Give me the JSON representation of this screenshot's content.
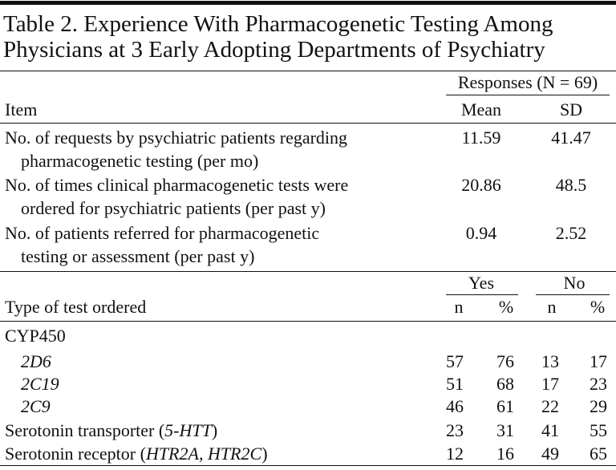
{
  "header": {
    "title": [
      "Table 2. Experience With Pharmacogenetic Testing Among",
      "Physicians at 3 Early Adopting Departments of Psychiatry"
    ]
  },
  "table1": {
    "group_header": "Responses (N = 69)",
    "headers": [
      "Item",
      "Mean",
      "SD"
    ],
    "rows": [
      {
        "item": [
          "No. of requests by psychiatric patients regarding",
          "pharmacogenetic testing (per mo)"
        ],
        "mean": 11.59,
        "sd": 41.47
      },
      {
        "item": [
          "No. of times clinical pharmacogenetic tests were",
          "ordered for psychiatric patients (per past y)"
        ],
        "mean": 20.86,
        "sd": 48.5
      },
      {
        "item": [
          "No. of patients referred for pharmacogenetic",
          "testing or assessment (per past y)"
        ],
        "mean": 0.94,
        "sd": 2.52
      }
    ]
  },
  "table2": {
    "group_headers": [
      "Yes",
      "No"
    ],
    "headers": [
      "Type of test ordered",
      "n",
      "%",
      "n",
      "%"
    ],
    "rows": [
      {
        "label": [
          "CYP450"
        ],
        "italic": [
          false
        ],
        "values": []
      },
      {
        "label": [
          "2D6"
        ],
        "italic": [
          true
        ],
        "indent": true,
        "values": [
          57,
          76,
          13,
          17
        ]
      },
      {
        "label": [
          "2C19"
        ],
        "italic": [
          true
        ],
        "indent": true,
        "values": [
          51,
          68,
          17,
          23
        ]
      },
      {
        "label": [
          "2C9"
        ],
        "italic": [
          true
        ],
        "indent": true,
        "values": [
          46,
          61,
          22,
          29
        ]
      },
      {
        "label": [
          "Serotonin transporter (",
          "5-HTT",
          ")"
        ],
        "italic": [
          false,
          true,
          false
        ],
        "values": [
          23,
          31,
          41,
          55
        ]
      },
      {
        "label": [
          "Serotonin receptor (",
          "HTR2A, HTR2C",
          ")"
        ],
        "italic": [
          false,
          true,
          false
        ],
        "values": [
          12,
          16,
          49,
          65
        ]
      }
    ]
  }
}
